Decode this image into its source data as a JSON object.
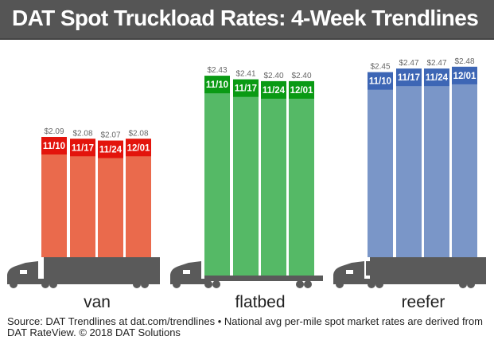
{
  "header": {
    "title": "DAT Spot Truckload Rates: 4-Week Trendlines"
  },
  "chart_data": {
    "type": "bar",
    "title": "DAT Spot Truckload Rates: 4-Week Trendlines",
    "categories": [
      "11/10",
      "11/17",
      "11/24",
      "12/01"
    ],
    "groups": [
      {
        "name": "van",
        "values": [
          2.09,
          2.08,
          2.07,
          2.08
        ],
        "labels": [
          "$2.09",
          "$2.08",
          "$2.07",
          "$2.08"
        ],
        "color": "#EA6A4C",
        "label_color": "#E3140C",
        "trailer": "van"
      },
      {
        "name": "flatbed",
        "values": [
          2.43,
          2.41,
          2.4,
          2.4
        ],
        "labels": [
          "$2.43",
          "$2.41",
          "$2.40",
          "$2.40"
        ],
        "color": "#55B966",
        "label_color": "#0A9A14",
        "trailer": "flatbed"
      },
      {
        "name": "reefer",
        "values": [
          2.45,
          2.47,
          2.47,
          2.48
        ],
        "labels": [
          "$2.45",
          "$2.47",
          "$2.47",
          "$2.48"
        ],
        "color": "#7A96C8",
        "label_color": "#3D66B5",
        "trailer": "reefer"
      }
    ],
    "truck_color": "#5A5A5A",
    "grid": false
  },
  "footer": {
    "source": "Source: DAT Trendlines at dat.com/trendlines • National avg per-mile spot market rates are derived from DAT RateView. © 2018 DAT Solutions"
  }
}
